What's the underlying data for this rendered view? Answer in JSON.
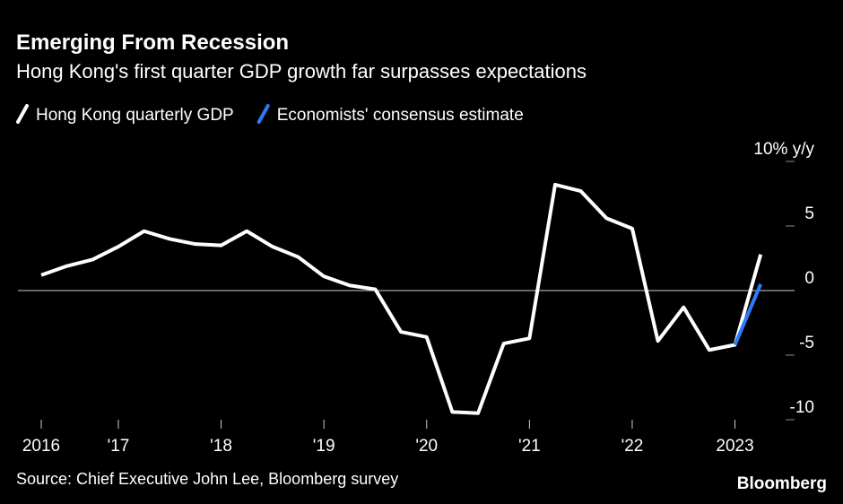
{
  "chart_data": {
    "type": "line",
    "title": "Emerging From Recession",
    "subtitle": "Hong Kong's first quarter GDP growth far surpasses expectations",
    "source": "Source: Chief Executive John Lee, Bloomberg survey",
    "brand": "Bloomberg",
    "categories": [
      "2016",
      null,
      null,
      "'17",
      null,
      null,
      null,
      "'18",
      null,
      null,
      null,
      "'19",
      null,
      null,
      null,
      "'20",
      null,
      null,
      null,
      "'21",
      null,
      null,
      null,
      "'22",
      null,
      null,
      null,
      "2023",
      null
    ],
    "series": [
      {
        "name": "Hong Kong quarterly GDP",
        "color": "#ffffff",
        "values": [
          1.2,
          1.9,
          2.4,
          3.4,
          4.6,
          4.0,
          3.6,
          3.5,
          4.6,
          3.4,
          2.6,
          1.1,
          0.4,
          0.1,
          -3.2,
          -3.6,
          -9.4,
          -9.5,
          -4.1,
          -3.7,
          8.2,
          7.7,
          5.6,
          4.8,
          -3.9,
          -1.3,
          -4.6,
          -4.2,
          2.8
        ]
      },
      {
        "name": "Economists' consensus estimate",
        "color": "#2f7bf5",
        "values": [
          null,
          null,
          null,
          null,
          null,
          null,
          null,
          null,
          null,
          null,
          null,
          null,
          null,
          null,
          null,
          null,
          null,
          null,
          null,
          null,
          null,
          null,
          null,
          null,
          null,
          null,
          null,
          -4.2,
          0.5
        ]
      }
    ],
    "ylim": [
      -10,
      10
    ],
    "yticks": [
      {
        "value": 10,
        "label": "10% y/y"
      },
      5,
      0,
      -5,
      -10
    ],
    "grid": false
  }
}
